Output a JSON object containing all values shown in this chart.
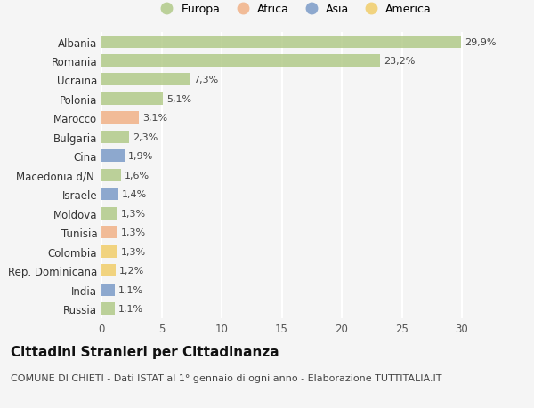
{
  "countries": [
    "Albania",
    "Romania",
    "Ucraina",
    "Polonia",
    "Marocco",
    "Bulgaria",
    "Cina",
    "Macedonia d/N.",
    "Israele",
    "Moldova",
    "Tunisia",
    "Colombia",
    "Rep. Dominicana",
    "India",
    "Russia"
  ],
  "values": [
    29.9,
    23.2,
    7.3,
    5.1,
    3.1,
    2.3,
    1.9,
    1.6,
    1.4,
    1.3,
    1.3,
    1.3,
    1.2,
    1.1,
    1.1
  ],
  "labels": [
    "29,9%",
    "23,2%",
    "7,3%",
    "5,1%",
    "3,1%",
    "2,3%",
    "1,9%",
    "1,6%",
    "1,4%",
    "1,3%",
    "1,3%",
    "1,3%",
    "1,2%",
    "1,1%",
    "1,1%"
  ],
  "continent": [
    "Europa",
    "Europa",
    "Europa",
    "Europa",
    "Africa",
    "Europa",
    "Asia",
    "Europa",
    "Asia",
    "Europa",
    "Africa",
    "America",
    "America",
    "Asia",
    "Europa"
  ],
  "colors": {
    "Europa": "#a8c47a",
    "Africa": "#f0a878",
    "Asia": "#6b8fc2",
    "America": "#f0c858"
  },
  "legend_order": [
    "Europa",
    "Africa",
    "Asia",
    "America"
  ],
  "bar_alpha": 0.75,
  "title": "Cittadini Stranieri per Cittadinanza",
  "subtitle": "COMUNE DI CHIETI - Dati ISTAT al 1° gennaio di ogni anno - Elaborazione TUTTITALIA.IT",
  "xlim": [
    0,
    32
  ],
  "xticks": [
    0,
    5,
    10,
    15,
    20,
    25,
    30
  ],
  "background_color": "#f5f5f5",
  "grid_color": "#ffffff",
  "title_fontsize": 11,
  "subtitle_fontsize": 8,
  "label_fontsize": 8,
  "tick_fontsize": 8.5,
  "legend_fontsize": 9
}
